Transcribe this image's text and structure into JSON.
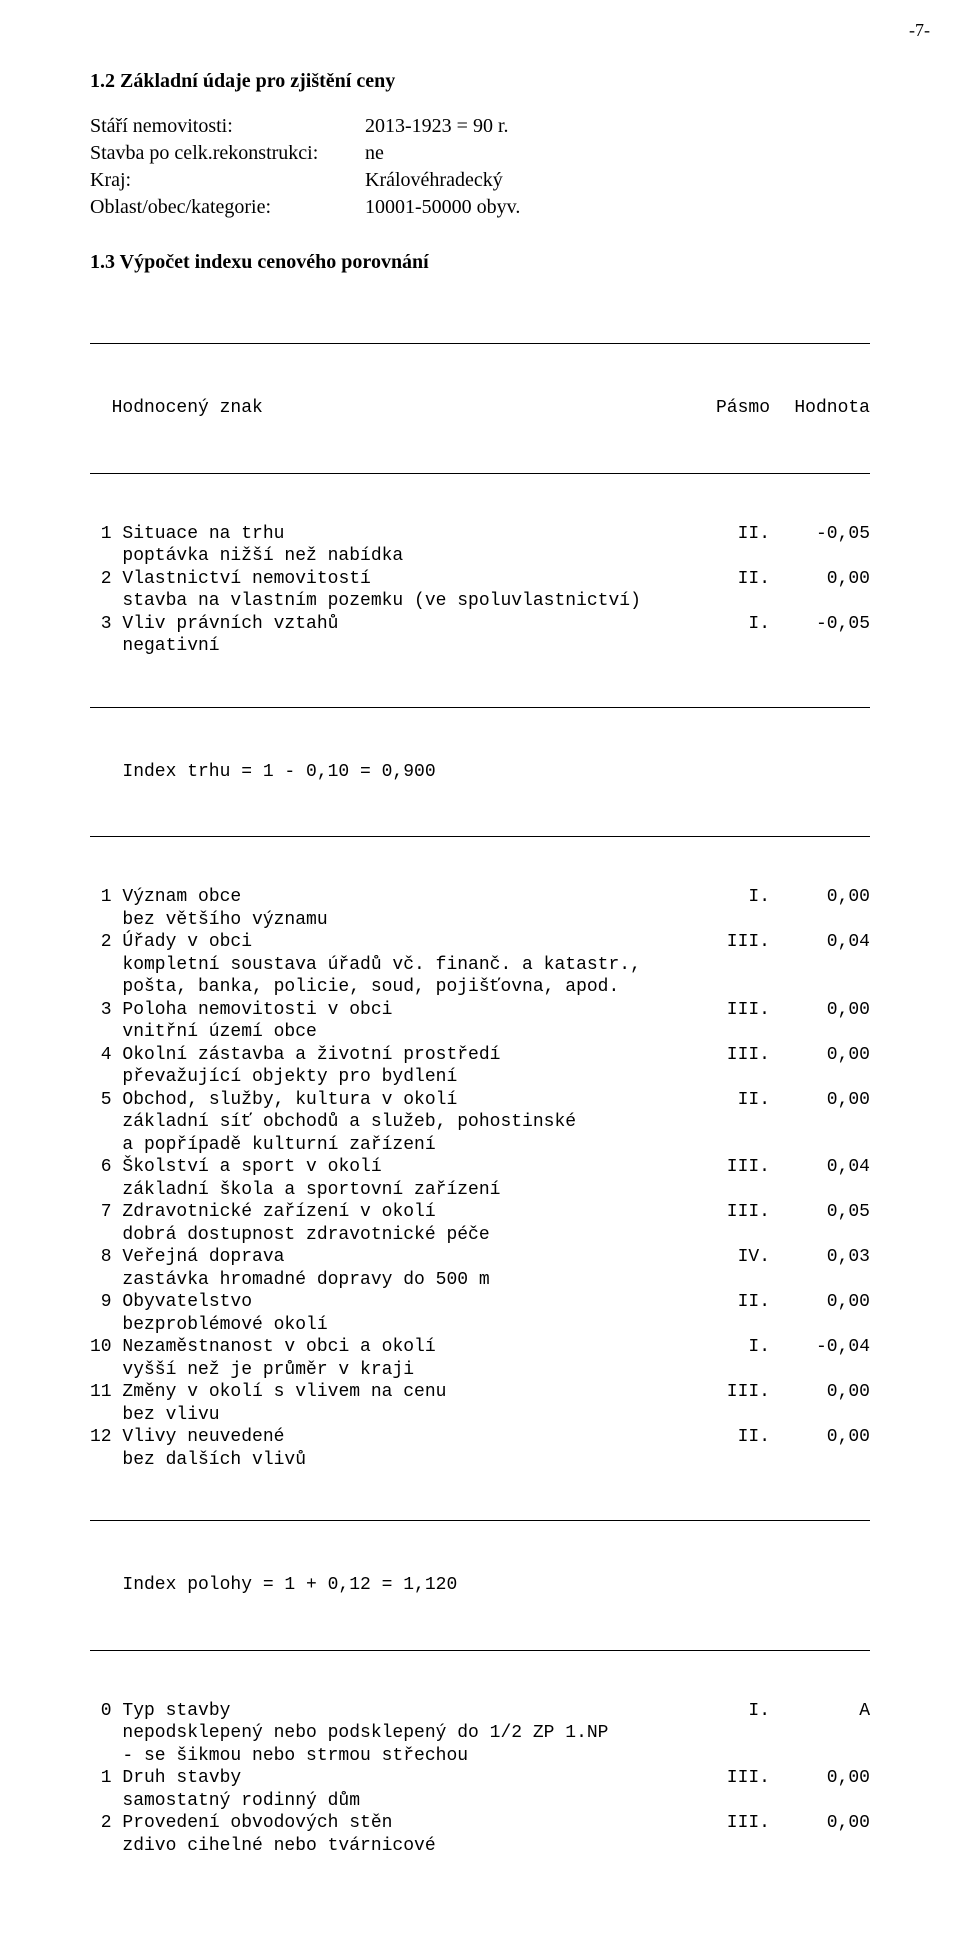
{
  "page_number": "-7-",
  "section1": {
    "heading": "1.2 Základní údaje pro zjištění ceny",
    "rows": [
      {
        "label": "Stáří nemovitosti:",
        "value": "2013-1923 = 90 r."
      },
      {
        "label": "Stavba po celk.rekonstrukci:",
        "value": "ne"
      },
      {
        "label": "Kraj:",
        "value": "Královéhradecký"
      },
      {
        "label": "Oblast/obec/kategorie:",
        "value": "10001-50000 obyv."
      }
    ]
  },
  "section2": {
    "heading": "1.3 Výpočet indexu cenového porovnání",
    "header": {
      "c1": "  Hodnocený znak",
      "c2": "Pásmo",
      "c3": "Hodnota"
    },
    "block1": [
      {
        "t": "row",
        "c1": " 1 Situace na trhu",
        "c2": "II.",
        "c3": "-0,05"
      },
      {
        "t": "sub",
        "text": "poptávka nižší než nabídka"
      },
      {
        "t": "row",
        "c1": " 2 Vlastnictví nemovitostí",
        "c2": "II.",
        "c3": "0,00"
      },
      {
        "t": "sub",
        "text": "stavba na vlastním pozemku (ve spoluvlastnictví)"
      },
      {
        "t": "row",
        "c1": " 3 Vliv právních vztahů",
        "c2": "I.",
        "c3": "-0,05"
      },
      {
        "t": "sub",
        "text": "negativní"
      }
    ],
    "index1": "Index trhu = 1 - 0,10 = 0,900",
    "block2": [
      {
        "t": "row",
        "c1": " 1 Význam obce",
        "c2": "I.",
        "c3": "0,00"
      },
      {
        "t": "sub",
        "text": "bez většího významu"
      },
      {
        "t": "row",
        "c1": " 2 Úřady v obci",
        "c2": "III.",
        "c3": "0,04"
      },
      {
        "t": "sub",
        "text": "kompletní soustava úřadů vč. finanč. a katastr.,"
      },
      {
        "t": "sub",
        "text": "pošta, banka, policie, soud, pojišťovna, apod."
      },
      {
        "t": "row",
        "c1": " 3 Poloha nemovitosti v obci",
        "c2": "III.",
        "c3": "0,00"
      },
      {
        "t": "sub",
        "text": "vnitřní území obce"
      },
      {
        "t": "row",
        "c1": " 4 Okolní zástavba a životní prostředí",
        "c2": "III.",
        "c3": "0,00"
      },
      {
        "t": "sub",
        "text": "převažující objekty pro bydlení"
      },
      {
        "t": "row",
        "c1": " 5 Obchod, služby, kultura v okolí",
        "c2": "II.",
        "c3": "0,00"
      },
      {
        "t": "sub",
        "text": "základní síť obchodů a služeb, pohostinské"
      },
      {
        "t": "sub",
        "text": "a popřípadě kulturní zařízení"
      },
      {
        "t": "row",
        "c1": " 6 Školství a sport v okolí",
        "c2": "III.",
        "c3": "0,04"
      },
      {
        "t": "sub",
        "text": "základní škola a sportovní zařízení"
      },
      {
        "t": "row",
        "c1": " 7 Zdravotnické zařízení v okolí",
        "c2": "III.",
        "c3": "0,05"
      },
      {
        "t": "sub",
        "text": "dobrá dostupnost zdravotnické péče"
      },
      {
        "t": "row",
        "c1": " 8 Veřejná doprava",
        "c2": "IV.",
        "c3": "0,03"
      },
      {
        "t": "sub",
        "text": "zastávka hromadné dopravy do 500 m"
      },
      {
        "t": "row",
        "c1": " 9 Obyvatelstvo",
        "c2": "II.",
        "c3": "0,00"
      },
      {
        "t": "sub",
        "text": "bezproblémové okolí"
      },
      {
        "t": "row",
        "c1": "10 Nezaměstnanost v obci a okolí",
        "c2": "I.",
        "c3": "-0,04"
      },
      {
        "t": "sub",
        "text": "vyšší než je průměr v kraji"
      },
      {
        "t": "row",
        "c1": "11 Změny v okolí s vlivem na cenu",
        "c2": "III.",
        "c3": "0,00"
      },
      {
        "t": "sub",
        "text": "bez vlivu"
      },
      {
        "t": "row",
        "c1": "12 Vlivy neuvedené",
        "c2": "II.",
        "c3": "0,00"
      },
      {
        "t": "sub",
        "text": "bez dalších vlivů"
      }
    ],
    "index2": "Index polohy = 1 + 0,12 = 1,120",
    "block3": [
      {
        "t": "row",
        "c1": " 0 Typ stavby",
        "c2": "I.",
        "c3": "A"
      },
      {
        "t": "sub",
        "text": "nepodsklepený nebo podsklepený do 1/2 ZP 1.NP"
      },
      {
        "t": "sub",
        "text": "- se šikmou nebo strmou střechou"
      },
      {
        "t": "row",
        "c1": " 1 Druh stavby",
        "c2": "III.",
        "c3": "0,00"
      },
      {
        "t": "sub",
        "text": "samostatný rodinný dům"
      },
      {
        "t": "row",
        "c1": " 2 Provedení obvodových stěn",
        "c2": "III.",
        "c3": "0,00"
      },
      {
        "t": "sub",
        "text": "zdivo cihelné nebo tvárnicové"
      }
    ]
  }
}
